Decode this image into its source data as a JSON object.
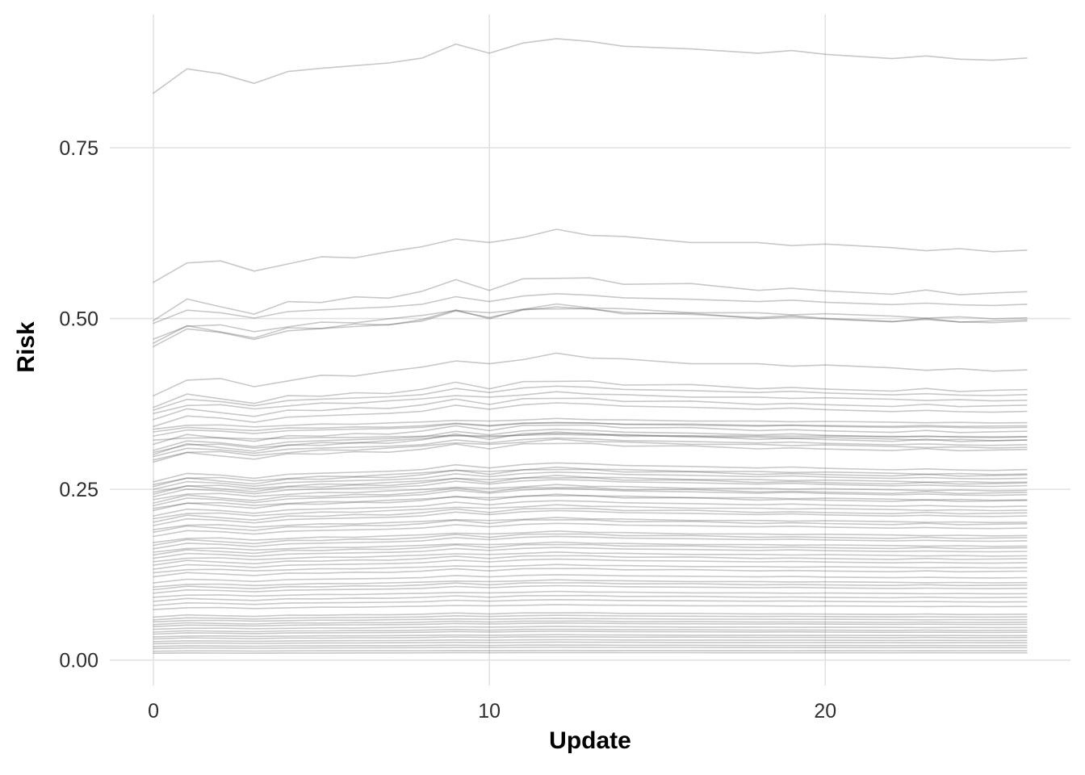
{
  "chart_data": {
    "type": "line",
    "title": "",
    "xlabel": "Update",
    "ylabel": "Risk",
    "legend": "none",
    "grid": true,
    "background_color": "#ffffff",
    "grid_color": "#e2e2e2",
    "line_color": "#323232",
    "line_alpha": 0.27,
    "xlim": [
      -1.3,
      27.3
    ],
    "ylim": [
      -0.037,
      0.945
    ],
    "x_ticks": [
      {
        "value": 0,
        "label": "0"
      },
      {
        "value": 10,
        "label": "10"
      },
      {
        "value": 20,
        "label": "20"
      }
    ],
    "y_ticks": [
      {
        "value": 0.0,
        "label": "0.00"
      },
      {
        "value": 0.25,
        "label": "0.25"
      },
      {
        "value": 0.5,
        "label": "0.50"
      },
      {
        "value": 0.75,
        "label": "0.75"
      }
    ],
    "x_keypoints": [
      0,
      1,
      2,
      3,
      4,
      5,
      6,
      7,
      8,
      9,
      10,
      11,
      12,
      13,
      14,
      16,
      18,
      19,
      20,
      22,
      23,
      24,
      25,
      26
    ],
    "profiles": [
      [
        0,
        0.045,
        0.036,
        0.018,
        0.04,
        0.046,
        0.051,
        0.056,
        0.065,
        0.091,
        0.074,
        0.093,
        0.101,
        0.096,
        0.087,
        0.082,
        0.074,
        0.079,
        0.072,
        0.064,
        0.069,
        0.063,
        0.061,
        0.065
      ],
      [
        0,
        0.038,
        0.042,
        0.022,
        0.036,
        0.05,
        0.048,
        0.06,
        0.07,
        0.085,
        0.078,
        0.088,
        0.104,
        0.092,
        0.09,
        0.078,
        0.078,
        0.072,
        0.075,
        0.068,
        0.062,
        0.066,
        0.06,
        0.063
      ],
      [
        0,
        0.05,
        0.032,
        0.015,
        0.044,
        0.042,
        0.055,
        0.052,
        0.068,
        0.095,
        0.07,
        0.097,
        0.098,
        0.099,
        0.084,
        0.086,
        0.07,
        0.075,
        0.069,
        0.061,
        0.071,
        0.06,
        0.064,
        0.067
      ]
    ],
    "lines": [
      {
        "start": 0.83,
        "gain": 0.95,
        "p": 0
      },
      {
        "start": 0.553,
        "gain": 1.35,
        "p": 1
      },
      {
        "start": 0.497,
        "gain": 1.27,
        "p": 2
      },
      {
        "start": 0.493,
        "gain": 0.87,
        "p": 0
      },
      {
        "start": 0.47,
        "gain": 1.05,
        "p": 1
      },
      {
        "start": 0.464,
        "gain": 1.1,
        "p": 2
      },
      {
        "start": 0.459,
        "gain": 1.25,
        "p": 0
      },
      {
        "start": 0.387,
        "gain": 1.55,
        "p": 1
      },
      {
        "start": 0.37,
        "gain": 1.05,
        "p": 2
      },
      {
        "start": 0.366,
        "gain": 0.95,
        "p": 0
      },
      {
        "start": 0.361,
        "gain": 0.85,
        "p": 1
      },
      {
        "start": 0.352,
        "gain": 0.9,
        "p": 2
      },
      {
        "start": 0.342,
        "gain": 1.0,
        "p": 0
      },
      {
        "start": 0.338,
        "gain": 0.45,
        "p": 1
      },
      {
        "start": 0.334,
        "gain": 0.4,
        "p": 2
      },
      {
        "start": 0.328,
        "gain": 0.6,
        "p": 0
      },
      {
        "start": 0.322,
        "gain": 0.25,
        "p": 1
      },
      {
        "start": 0.316,
        "gain": 0.9,
        "p": 2
      },
      {
        "start": 0.307,
        "gain": 1.0,
        "p": 0
      },
      {
        "start": 0.304,
        "gain": 0.95,
        "p": 1
      },
      {
        "start": 0.301,
        "gain": 1.05,
        "p": 2
      },
      {
        "start": 0.298,
        "gain": 0.9,
        "p": 0
      },
      {
        "start": 0.293,
        "gain": 1.0,
        "p": 1
      },
      {
        "start": 0.29,
        "gain": 0.95,
        "p": 2
      },
      {
        "start": 0.261,
        "gain": 1.05,
        "p": 0
      },
      {
        "start": 0.257,
        "gain": 0.95,
        "p": 1
      },
      {
        "start": 0.254,
        "gain": 1.0,
        "p": 2
      },
      {
        "start": 0.25,
        "gain": 1.0,
        "p": 0
      },
      {
        "start": 0.246,
        "gain": 0.95,
        "p": 1
      },
      {
        "start": 0.243,
        "gain": 1.0,
        "p": 2
      },
      {
        "start": 0.239,
        "gain": 1.05,
        "p": 0
      },
      {
        "start": 0.235,
        "gain": 0.9,
        "p": 1
      },
      {
        "start": 0.23,
        "gain": 1.0,
        "p": 2
      },
      {
        "start": 0.226,
        "gain": 1.1,
        "p": 0
      },
      {
        "start": 0.222,
        "gain": 0.9,
        "p": 1
      },
      {
        "start": 0.219,
        "gain": 1.0,
        "p": 2
      },
      {
        "start": 0.211,
        "gain": 1.05,
        "p": 0
      },
      {
        "start": 0.207,
        "gain": 0.95,
        "p": 1
      },
      {
        "start": 0.202,
        "gain": 1.0,
        "p": 2
      },
      {
        "start": 0.197,
        "gain": 1.1,
        "p": 0
      },
      {
        "start": 0.191,
        "gain": 0.9,
        "p": 1
      },
      {
        "start": 0.187,
        "gain": 1.0,
        "p": 2
      },
      {
        "start": 0.181,
        "gain": 1.05,
        "p": 0
      },
      {
        "start": 0.172,
        "gain": 0.95,
        "p": 1
      },
      {
        "start": 0.168,
        "gain": 1.0,
        "p": 2
      },
      {
        "start": 0.163,
        "gain": 1.1,
        "p": 0
      },
      {
        "start": 0.158,
        "gain": 0.9,
        "p": 1
      },
      {
        "start": 0.154,
        "gain": 1.0,
        "p": 2
      },
      {
        "start": 0.149,
        "gain": 1.05,
        "p": 0
      },
      {
        "start": 0.144,
        "gain": 0.95,
        "p": 1
      },
      {
        "start": 0.139,
        "gain": 1.0,
        "p": 2
      },
      {
        "start": 0.133,
        "gain": 1.1,
        "p": 0
      },
      {
        "start": 0.128,
        "gain": 0.9,
        "p": 1
      },
      {
        "start": 0.122,
        "gain": 1.0,
        "p": 2
      },
      {
        "start": 0.113,
        "gain": 1.05,
        "p": 0
      },
      {
        "start": 0.107,
        "gain": 0.95,
        "p": 1
      },
      {
        "start": 0.103,
        "gain": 1.0,
        "p": 2
      },
      {
        "start": 0.098,
        "gain": 1.1,
        "p": 0
      },
      {
        "start": 0.092,
        "gain": 0.9,
        "p": 1
      },
      {
        "start": 0.086,
        "gain": 1.0,
        "p": 2
      },
      {
        "start": 0.08,
        "gain": 1.05,
        "p": 0
      },
      {
        "start": 0.074,
        "gain": 0.95,
        "p": 1
      },
      {
        "start": 0.063,
        "gain": 1.0,
        "p": 2
      },
      {
        "start": 0.059,
        "gain": 1.1,
        "p": 0
      },
      {
        "start": 0.056,
        "gain": 0.9,
        "p": 1
      },
      {
        "start": 0.052,
        "gain": 1.0,
        "p": 2
      },
      {
        "start": 0.049,
        "gain": 1.05,
        "p": 0
      },
      {
        "start": 0.045,
        "gain": 0.95,
        "p": 1
      },
      {
        "start": 0.041,
        "gain": 1.0,
        "p": 2
      },
      {
        "start": 0.038,
        "gain": 1.1,
        "p": 0
      },
      {
        "start": 0.034,
        "gain": 0.9,
        "p": 1
      },
      {
        "start": 0.031,
        "gain": 1.0,
        "p": 2
      },
      {
        "start": 0.027,
        "gain": 1.05,
        "p": 0
      },
      {
        "start": 0.024,
        "gain": 0.95,
        "p": 1
      },
      {
        "start": 0.02,
        "gain": 1.0,
        "p": 2
      },
      {
        "start": 0.017,
        "gain": 1.1,
        "p": 0
      },
      {
        "start": 0.013,
        "gain": 0.9,
        "p": 1
      },
      {
        "start": 0.01,
        "gain": 1.0,
        "p": 2
      }
    ]
  }
}
